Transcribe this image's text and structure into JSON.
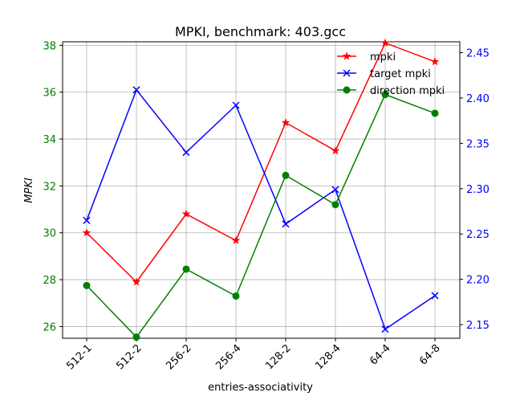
{
  "chart_data": {
    "type": "line",
    "title": "MPKI, benchmark: 403.gcc",
    "xlabel": "entries-associativity",
    "ylabel": "MPKI",
    "categories": [
      "512-1",
      "512-2",
      "256-2",
      "256-4",
      "128-2",
      "128-4",
      "64-4",
      "64-8"
    ],
    "left_axis": {
      "ylim": [
        25.5,
        38.15
      ],
      "ticks": [
        26,
        28,
        30,
        32,
        34,
        36,
        38
      ],
      "tick_color": "#008000"
    },
    "right_axis": {
      "ylim": [
        2.135,
        2.462
      ],
      "ticks": [
        2.15,
        2.2,
        2.25,
        2.3,
        2.35,
        2.4,
        2.45
      ],
      "tick_labels": [
        "2.15",
        "2.20",
        "2.25",
        "2.30",
        "2.35",
        "2.40",
        "2.45"
      ],
      "tick_color": "#0000ff"
    },
    "grid": true,
    "legend_position": "top-right",
    "series": [
      {
        "name": "mpki",
        "axis": "left",
        "color": "#ff0000",
        "marker": "star",
        "values": [
          30.0,
          27.9,
          30.8,
          29.67,
          34.7,
          33.5,
          38.1,
          37.3
        ]
      },
      {
        "name": "target mpki",
        "axis": "right",
        "color": "#0000ff",
        "marker": "x",
        "values": [
          2.265,
          2.409,
          2.34,
          2.392,
          2.261,
          2.299,
          2.145,
          2.182
        ]
      },
      {
        "name": "direction mpki",
        "axis": "left",
        "color": "#008000",
        "marker": "circle",
        "values": [
          27.75,
          25.55,
          28.45,
          27.3,
          32.45,
          31.2,
          35.9,
          35.1
        ]
      }
    ]
  }
}
